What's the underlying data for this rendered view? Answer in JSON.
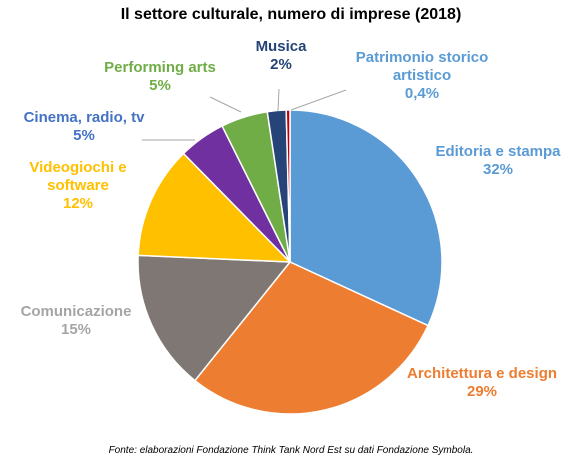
{
  "chart_data": {
    "type": "pie",
    "title": "Il settore culturale, numero di imprese (2018)",
    "source": "Fonte: elaborazioni Fondazione Think Tank Nord Est su dati Fondazione Symbola.",
    "slices": [
      {
        "label_lines": [
          "Editoria e stampa"
        ],
        "value_text": "32%",
        "value": 32,
        "color": "#5b9bd5"
      },
      {
        "label_lines": [
          "Architettura e design"
        ],
        "value_text": "29%",
        "value": 29,
        "color": "#ed7d31"
      },
      {
        "label_lines": [
          "Comunicazione"
        ],
        "value_text": "15%",
        "value": 15,
        "color": "#7f7774"
      },
      {
        "label_lines": [
          "Videogiochi e",
          "software"
        ],
        "value_text": "12%",
        "value": 12,
        "color": "#ffc000"
      },
      {
        "label_lines": [
          "Cinema, radio, tv"
        ],
        "value_text": "5%",
        "value": 5,
        "color": "#7030a0"
      },
      {
        "label_lines": [
          "Performing arts"
        ],
        "value_text": "5%",
        "value": 5,
        "color": "#70ad47"
      },
      {
        "label_lines": [
          "Musica"
        ],
        "value_text": "2%",
        "value": 2,
        "color": "#264478"
      },
      {
        "label_lines": [
          "Patrimonio storico",
          "artistico"
        ],
        "value_text": "0,4%",
        "value": 0.4,
        "color": "#c00000"
      }
    ],
    "label_colors": [
      "#5b9bd5",
      "#ed7d31",
      "#a5a5a5",
      "#ffc000",
      "#4472c4",
      "#70ad47",
      "#264478",
      "#5b9bd5"
    ]
  }
}
